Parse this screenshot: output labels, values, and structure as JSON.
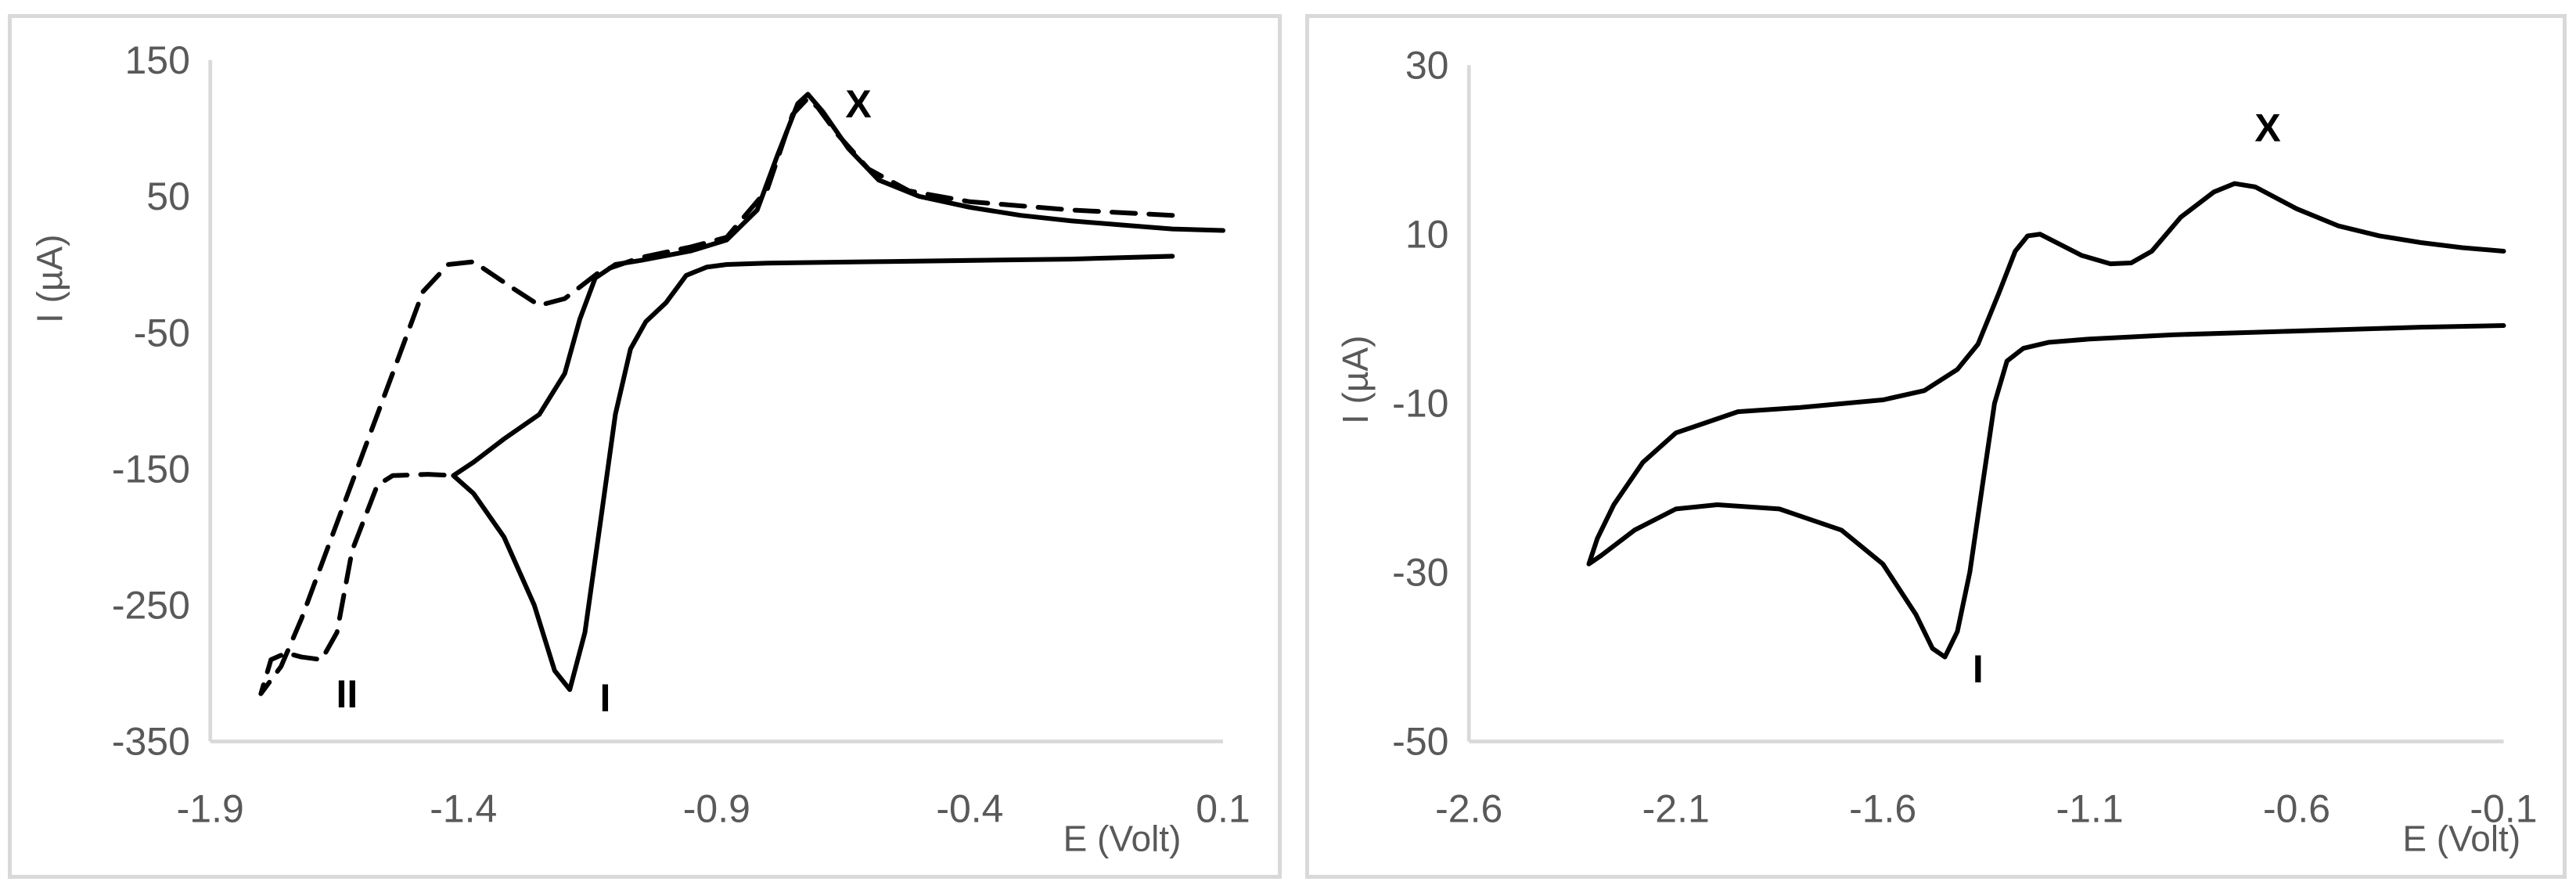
{
  "colors": {
    "axis": "#d9d9d9",
    "text": "#595959",
    "series": "#000000",
    "frame": "#d9d9d9"
  },
  "chart_data": [
    {
      "type": "line",
      "xlabel": "E (Volt)",
      "ylabel": "I (µA)",
      "xlim": [
        -1.9,
        0.1
      ],
      "ylim": [
        -350,
        150
      ],
      "x_ticks": [
        "-1.9",
        "-1.4",
        "-0.9",
        "-0.4",
        "0.1"
      ],
      "y_ticks": [
        "150",
        "50",
        "-50",
        "-150",
        "-250",
        "-350"
      ],
      "grid": false,
      "annotations": [
        {
          "text": "X",
          "x": -0.62,
          "y": 108
        },
        {
          "text": "II",
          "x": -1.63,
          "y": -325
        },
        {
          "text": "I",
          "x": -1.12,
          "y": -328
        }
      ],
      "series": [
        {
          "style": "solid",
          "points": [
            [
              0.0,
              6
            ],
            [
              -0.2,
              4
            ],
            [
              -0.4,
              3
            ],
            [
              -0.6,
              2
            ],
            [
              -0.8,
              1
            ],
            [
              -0.88,
              0
            ],
            [
              -0.92,
              -2
            ],
            [
              -0.96,
              -8
            ],
            [
              -1.0,
              -28
            ],
            [
              -1.04,
              -42
            ],
            [
              -1.07,
              -62
            ],
            [
              -1.1,
              -110
            ],
            [
              -1.13,
              -190
            ],
            [
              -1.16,
              -270
            ],
            [
              -1.19,
              -312
            ],
            [
              -1.22,
              -298
            ],
            [
              -1.26,
              -250
            ],
            [
              -1.32,
              -200
            ],
            [
              -1.38,
              -168
            ],
            [
              -1.42,
              -155
            ],
            [
              -1.38,
              -145
            ],
            [
              -1.32,
              -128
            ],
            [
              -1.25,
              -110
            ],
            [
              -1.2,
              -80
            ],
            [
              -1.17,
              -40
            ],
            [
              -1.14,
              -10
            ],
            [
              -1.1,
              0
            ],
            [
              -1.05,
              3
            ],
            [
              -0.95,
              10
            ],
            [
              -0.88,
              18
            ],
            [
              -0.82,
              40
            ],
            [
              -0.78,
              80
            ],
            [
              -0.74,
              118
            ],
            [
              -0.72,
              125
            ],
            [
              -0.69,
              112
            ],
            [
              -0.64,
              85
            ],
            [
              -0.58,
              62
            ],
            [
              -0.5,
              50
            ],
            [
              -0.4,
              42
            ],
            [
              -0.3,
              36
            ],
            [
              -0.2,
              32
            ],
            [
              -0.1,
              29
            ],
            [
              0.0,
              26
            ],
            [
              0.1,
              25
            ]
          ]
        },
        {
          "style": "dashed",
          "points": [
            [
              0.0,
              36
            ],
            [
              -0.2,
              40
            ],
            [
              -0.4,
              46
            ],
            [
              -0.52,
              54
            ],
            [
              -0.6,
              70
            ],
            [
              -0.66,
              95
            ],
            [
              -0.7,
              115
            ],
            [
              -0.72,
              122
            ],
            [
              -0.75,
              110
            ],
            [
              -0.8,
              55
            ],
            [
              -0.88,
              20
            ],
            [
              -0.95,
              13
            ],
            [
              -1.05,
              5
            ],
            [
              -1.13,
              -5
            ],
            [
              -1.2,
              -25
            ],
            [
              -1.25,
              -30
            ],
            [
              -1.3,
              -18
            ],
            [
              -1.38,
              2
            ],
            [
              -1.43,
              0
            ],
            [
              -1.48,
              -20
            ],
            [
              -1.53,
              -70
            ],
            [
              -1.6,
              -140
            ],
            [
              -1.66,
              -200
            ],
            [
              -1.72,
              -260
            ],
            [
              -1.76,
              -295
            ],
            [
              -1.8,
              -315
            ],
            [
              -1.78,
              -290
            ],
            [
              -1.75,
              -285
            ],
            [
              -1.72,
              -288
            ],
            [
              -1.68,
              -290
            ],
            [
              -1.65,
              -270
            ],
            [
              -1.62,
              -210
            ],
            [
              -1.57,
              -162
            ],
            [
              -1.54,
              -155
            ],
            [
              -1.47,
              -154
            ],
            [
              -1.42,
              -155
            ]
          ]
        }
      ]
    },
    {
      "type": "line",
      "xlabel": "E (Volt)",
      "ylabel": "I (µA)",
      "xlim": [
        -2.6,
        -0.1
      ],
      "ylim": [
        -50,
        30
      ],
      "x_ticks": [
        "-2.6",
        "-2.1",
        "-1.6",
        "-1.1",
        "-0.6",
        "-0.1"
      ],
      "y_ticks": [
        "30",
        "10",
        "-10",
        "-30",
        "-50"
      ],
      "grid": false,
      "annotations": [
        {
          "text": "X",
          "x": -0.67,
          "y": 21
        },
        {
          "text": "I",
          "x": -1.37,
          "y": -43
        }
      ],
      "series": [
        {
          "style": "solid",
          "points": [
            [
              -0.1,
              -0.8
            ],
            [
              -0.3,
              -1.0
            ],
            [
              -0.5,
              -1.3
            ],
            [
              -0.7,
              -1.6
            ],
            [
              -0.9,
              -1.9
            ],
            [
              -1.1,
              -2.4
            ],
            [
              -1.2,
              -2.8
            ],
            [
              -1.26,
              -3.5
            ],
            [
              -1.3,
              -5
            ],
            [
              -1.33,
              -10
            ],
            [
              -1.36,
              -20
            ],
            [
              -1.39,
              -30
            ],
            [
              -1.42,
              -37
            ],
            [
              -1.45,
              -40
            ],
            [
              -1.48,
              -39
            ],
            [
              -1.52,
              -35
            ],
            [
              -1.6,
              -29
            ],
            [
              -1.7,
              -25
            ],
            [
              -1.85,
              -22.5
            ],
            [
              -2.0,
              -22
            ],
            [
              -2.1,
              -22.5
            ],
            [
              -2.2,
              -25
            ],
            [
              -2.28,
              -28
            ],
            [
              -2.31,
              -29
            ],
            [
              -2.29,
              -26
            ],
            [
              -2.25,
              -22
            ],
            [
              -2.18,
              -17
            ],
            [
              -2.1,
              -13.5
            ],
            [
              -1.95,
              -11
            ],
            [
              -1.8,
              -10.5
            ],
            [
              -1.6,
              -9.6
            ],
            [
              -1.5,
              -8.5
            ],
            [
              -1.42,
              -6
            ],
            [
              -1.37,
              -3
            ],
            [
              -1.32,
              3
            ],
            [
              -1.28,
              8
            ],
            [
              -1.25,
              9.8
            ],
            [
              -1.22,
              10
            ],
            [
              -1.18,
              9
            ],
            [
              -1.12,
              7.5
            ],
            [
              -1.05,
              6.5
            ],
            [
              -1.0,
              6.6
            ],
            [
              -0.95,
              8
            ],
            [
              -0.88,
              12
            ],
            [
              -0.8,
              15
            ],
            [
              -0.75,
              16
            ],
            [
              -0.7,
              15.6
            ],
            [
              -0.6,
              13
            ],
            [
              -0.5,
              11
            ],
            [
              -0.4,
              9.8
            ],
            [
              -0.3,
              9
            ],
            [
              -0.2,
              8.4
            ],
            [
              -0.1,
              8
            ]
          ]
        }
      ]
    }
  ]
}
